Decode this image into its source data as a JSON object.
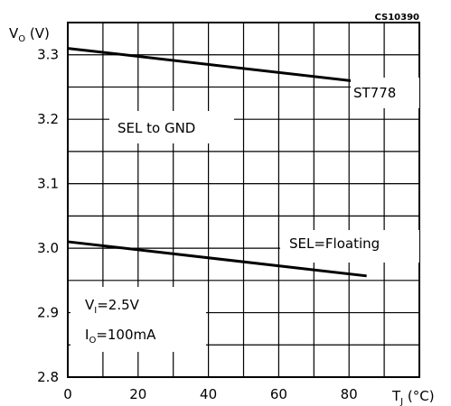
{
  "chart_data": {
    "type": "line",
    "code": "CS10390",
    "ylabel": {
      "main": "V",
      "sub": "O",
      "unit": " (V)"
    },
    "xlabel": {
      "main": "T",
      "sub": "J",
      "unit": " (°C)"
    },
    "xlim": [
      0,
      100
    ],
    "ylim": [
      2.8,
      3.35
    ],
    "x_ticks": [
      0,
      20,
      40,
      60,
      80
    ],
    "x_tick_labels": [
      "0",
      "20",
      "40",
      "60",
      "80"
    ],
    "y_ticks": [
      2.8,
      2.9,
      3.0,
      3.1,
      3.2,
      3.3
    ],
    "y_tick_labels": [
      "2.8",
      "2.9",
      "3.0",
      "3.1",
      "3.2",
      "3.3"
    ],
    "grid": true,
    "grid_x_step": 10,
    "grid_y_step": 0.05,
    "series": [
      {
        "name": "SEL to GND",
        "x": [
          0,
          85
        ],
        "y": [
          3.31,
          3.257
        ]
      },
      {
        "name": "SEL=Floating",
        "x": [
          0,
          85
        ],
        "y": [
          3.01,
          2.957
        ]
      }
    ],
    "annotations": {
      "device": "ST778",
      "vi": {
        "main": "V",
        "sub": "I",
        "rest": "=2.5V"
      },
      "io": {
        "main": "I",
        "sub": "O",
        "rest": "=100mA"
      }
    }
  }
}
